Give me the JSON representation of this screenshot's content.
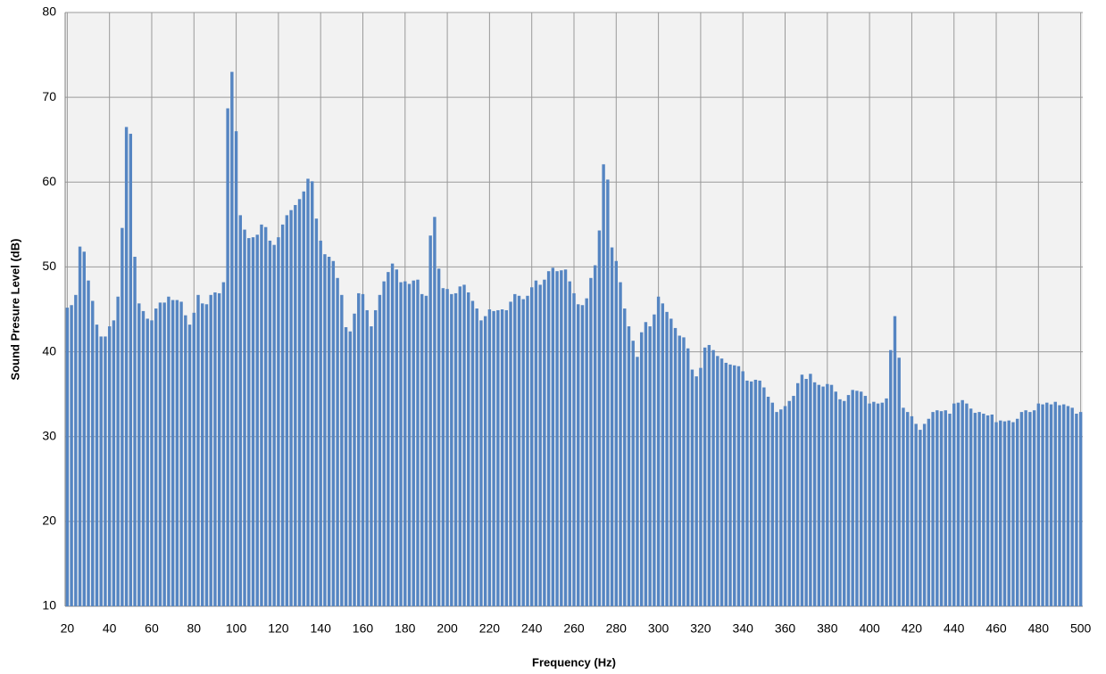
{
  "chart_data": {
    "type": "bar",
    "x_label": "Frequency (Hz)",
    "y_label": "Sound Presure  Level (dB)",
    "color": "#5585c2",
    "grid": true,
    "ylim": [
      10,
      80
    ],
    "yticks": [
      10,
      20,
      30,
      40,
      50,
      60,
      70,
      80
    ],
    "categories": [
      "20",
      null,
      null,
      null,
      null,
      null,
      null,
      null,
      null,
      null,
      "40",
      null,
      null,
      null,
      null,
      null,
      null,
      null,
      null,
      null,
      "60",
      null,
      null,
      null,
      null,
      null,
      null,
      null,
      null,
      null,
      "80",
      null,
      null,
      null,
      null,
      null,
      null,
      null,
      null,
      null,
      "100",
      null,
      null,
      null,
      null,
      null,
      null,
      null,
      null,
      null,
      "120",
      null,
      null,
      null,
      null,
      null,
      null,
      null,
      null,
      null,
      "140",
      null,
      null,
      null,
      null,
      null,
      null,
      null,
      null,
      null,
      "160",
      null,
      null,
      null,
      null,
      null,
      null,
      null,
      null,
      null,
      "180",
      null,
      null,
      null,
      null,
      null,
      null,
      null,
      null,
      null,
      "200",
      null,
      null,
      null,
      null,
      null,
      null,
      null,
      null,
      null,
      "220",
      null,
      null,
      null,
      null,
      null,
      null,
      null,
      null,
      null,
      "240",
      null,
      null,
      null,
      null,
      null,
      null,
      null,
      null,
      null,
      "260",
      null,
      null,
      null,
      null,
      null,
      null,
      null,
      null,
      null,
      "280",
      null,
      null,
      null,
      null,
      null,
      null,
      null,
      null,
      null,
      "300",
      null,
      null,
      null,
      null,
      null,
      null,
      null,
      null,
      null,
      "320",
      null,
      null,
      null,
      null,
      null,
      null,
      null,
      null,
      null,
      "340",
      null,
      null,
      null,
      null,
      null,
      null,
      null,
      null,
      null,
      "360",
      null,
      null,
      null,
      null,
      null,
      null,
      null,
      null,
      null,
      "380",
      null,
      null,
      null,
      null,
      null,
      null,
      null,
      null,
      null,
      "400",
      null,
      null,
      null,
      null,
      null,
      null,
      null,
      null,
      null,
      "420",
      null,
      null,
      null,
      null,
      null,
      null,
      null,
      null,
      null,
      "440",
      null,
      null,
      null,
      null,
      null,
      null,
      null,
      null,
      null,
      "460",
      null,
      null,
      null,
      null,
      null,
      null,
      null,
      null,
      null,
      "480",
      null,
      null,
      null,
      null,
      null,
      null,
      null,
      null,
      null,
      "500"
    ],
    "values": [
      45.2,
      45.5,
      46.7,
      52.4,
      51.8,
      48.4,
      46.0,
      43.2,
      41.8,
      41.8,
      43.0,
      43.7,
      46.5,
      54.6,
      66.5,
      65.7,
      51.2,
      45.7,
      44.8,
      43.9,
      43.7,
      45.1,
      45.8,
      45.8,
      46.5,
      46.1,
      46.1,
      45.9,
      44.3,
      43.2,
      44.6,
      46.7,
      45.7,
      45.6,
      46.7,
      47.0,
      46.9,
      48.2,
      68.7,
      73.0,
      66.0,
      56.1,
      54.4,
      53.4,
      53.5,
      53.8,
      55.0,
      54.7,
      53.1,
      52.6,
      53.5,
      55.0,
      56.1,
      56.7,
      57.3,
      58.0,
      58.9,
      60.4,
      60.1,
      55.7,
      53.1,
      51.5,
      51.2,
      50.7,
      48.7,
      46.7,
      42.9,
      42.4,
      44.5,
      46.9,
      46.8,
      44.9,
      43.0,
      44.9,
      46.7,
      48.3,
      49.4,
      50.4,
      49.7,
      48.2,
      48.3,
      48.0,
      48.4,
      48.5,
      46.8,
      46.6,
      53.7,
      55.9,
      49.8,
      47.5,
      47.4,
      46.8,
      46.9,
      47.7,
      47.9,
      47.0,
      46.0,
      45.1,
      43.7,
      44.2,
      45.0,
      44.8,
      44.9,
      45.0,
      44.9,
      45.9,
      46.8,
      46.6,
      46.2,
      46.6,
      47.6,
      48.4,
      47.9,
      48.5,
      49.5,
      49.9,
      49.5,
      49.6,
      49.7,
      48.3,
      46.9,
      45.6,
      45.5,
      46.3,
      48.7,
      50.2,
      54.3,
      62.1,
      60.3,
      52.3,
      50.7,
      48.2,
      45.1,
      43.0,
      41.3,
      39.4,
      42.3,
      43.5,
      43.0,
      44.4,
      46.5,
      45.7,
      44.7,
      43.9,
      42.8,
      41.9,
      41.7,
      40.4,
      37.9,
      37.1,
      38.1,
      40.5,
      40.8,
      40.2,
      39.5,
      39.2,
      38.7,
      38.5,
      38.4,
      38.3,
      37.7,
      36.6,
      36.5,
      36.7,
      36.6,
      35.8,
      34.7,
      34.0,
      32.9,
      33.2,
      33.6,
      34.2,
      34.8,
      36.3,
      37.3,
      36.8,
      37.4,
      36.4,
      36.1,
      35.9,
      36.2,
      36.1,
      35.3,
      34.4,
      34.2,
      34.9,
      35.5,
      35.4,
      35.3,
      34.8,
      33.9,
      34.1,
      33.9,
      34.0,
      34.5,
      40.2,
      44.2,
      39.3,
      33.4,
      32.9,
      32.4,
      31.5,
      30.8,
      31.5,
      32.1,
      32.9,
      33.1,
      33.0,
      33.1,
      32.7,
      33.9,
      34.0,
      34.3,
      33.9,
      33.3,
      32.8,
      32.9,
      32.7,
      32.5,
      32.6,
      31.7,
      31.9,
      31.8,
      31.9,
      31.7,
      32.1,
      32.9,
      33.1,
      32.9,
      33.1,
      33.9,
      33.8,
      34.0,
      33.8,
      34.1,
      33.7,
      33.8,
      33.6,
      33.4,
      32.7,
      32.9
    ]
  }
}
